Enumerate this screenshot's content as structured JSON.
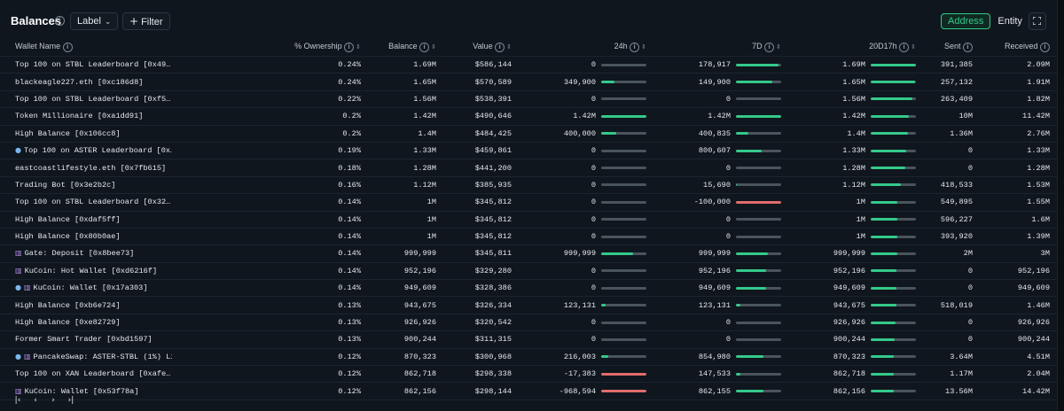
{
  "header": {
    "title": "Balances",
    "label_dropdown": "Label",
    "filter_label": "Filter",
    "toggle": {
      "address": "Address",
      "entity": "Entity",
      "active": "Address"
    }
  },
  "columns": [
    "Wallet Name",
    "% Ownership",
    "Balance",
    "Value",
    "24h",
    "7D",
    "20D17h",
    "Sent",
    "Received"
  ],
  "colors": {
    "accent": "#34c98a",
    "negative": "#e06c6c",
    "bar_track": "#4a545d"
  },
  "rows": [
    {
      "name": "Top 100 on STBL Leaderboard [0x49…",
      "icons": [],
      "ownership": "0.24%",
      "balance": "1.69M",
      "value": "$586,144",
      "h24": "0",
      "h24_bar": 0,
      "d7": "178,917",
      "d7_bar": 0.95,
      "d20": "1.69M",
      "d20_bar": 1.0,
      "sent": "391,385",
      "received": "2.09M"
    },
    {
      "name": "blackeagle227.eth [0xc186d8]",
      "icons": [],
      "ownership": "0.24%",
      "balance": "1.65M",
      "value": "$570,589",
      "h24": "349,900",
      "h24_bar": 0.3,
      "d7": "149,900",
      "d7_bar": 0.8,
      "d20": "1.65M",
      "d20_bar": 0.98,
      "sent": "257,132",
      "received": "1.91M"
    },
    {
      "name": "Top 100 on STBL Leaderboard [0xf5…",
      "icons": [],
      "ownership": "0.22%",
      "balance": "1.56M",
      "value": "$538,391",
      "h24": "0",
      "h24_bar": 0,
      "d7": "0",
      "d7_bar": 0,
      "d20": "1.56M",
      "d20_bar": 0.92,
      "sent": "263,409",
      "received": "1.82M"
    },
    {
      "name": "Token Millionaire [0xa1dd91]",
      "icons": [],
      "ownership": "0.2%",
      "balance": "1.42M",
      "value": "$490,646",
      "h24": "1.42M",
      "h24_bar": 1.0,
      "d7": "1.42M",
      "d7_bar": 1.0,
      "d20": "1.42M",
      "d20_bar": 0.84,
      "sent": "10M",
      "received": "11.42M"
    },
    {
      "name": "High Balance [0x106cc8]",
      "icons": [],
      "ownership": "0.2%",
      "balance": "1.4M",
      "value": "$484,425",
      "h24": "400,000",
      "h24_bar": 0.33,
      "d7": "400,835",
      "d7_bar": 0.28,
      "d20": "1.4M",
      "d20_bar": 0.83,
      "sent": "1.36M",
      "received": "2.76M"
    },
    {
      "name": "Top 100 on ASTER Leaderboard [0x…",
      "icons": [
        "bot"
      ],
      "ownership": "0.19%",
      "balance": "1.33M",
      "value": "$459,861",
      "h24": "0",
      "h24_bar": 0,
      "d7": "800,607",
      "d7_bar": 0.56,
      "d20": "1.33M",
      "d20_bar": 0.79,
      "sent": "0",
      "received": "1.33M"
    },
    {
      "name": "eastcoastlifestyle.eth [0x7fb615]",
      "icons": [],
      "ownership": "0.18%",
      "balance": "1.28M",
      "value": "$441,200",
      "h24": "0",
      "h24_bar": 0,
      "d7": "0",
      "d7_bar": 0,
      "d20": "1.28M",
      "d20_bar": 0.76,
      "sent": "0",
      "received": "1.28M"
    },
    {
      "name": "Trading Bot [0x3e2b2c]",
      "icons": [],
      "ownership": "0.16%",
      "balance": "1.12M",
      "value": "$385,935",
      "h24": "0",
      "h24_bar": 0,
      "d7": "15,690",
      "d7_bar": 0.02,
      "d20": "1.12M",
      "d20_bar": 0.66,
      "sent": "418,533",
      "received": "1.53M"
    },
    {
      "name": "Top 100 on STBL Leaderboard [0x32…",
      "icons": [],
      "ownership": "0.14%",
      "balance": "1M",
      "value": "$345,812",
      "h24": "0",
      "h24_bar": 0,
      "d7": "-100,000",
      "d7_bar": -1.0,
      "d20": "1M",
      "d20_bar": 0.59,
      "sent": "549,895",
      "received": "1.55M"
    },
    {
      "name": "High Balance [0xdaf5ff]",
      "icons": [],
      "ownership": "0.14%",
      "balance": "1M",
      "value": "$345,812",
      "h24": "0",
      "h24_bar": 0,
      "d7": "0",
      "d7_bar": 0,
      "d20": "1M",
      "d20_bar": 0.59,
      "sent": "596,227",
      "received": "1.6M"
    },
    {
      "name": "High Balance [0x80b0ae]",
      "icons": [],
      "ownership": "0.14%",
      "balance": "1M",
      "value": "$345,812",
      "h24": "0",
      "h24_bar": 0,
      "d7": "0",
      "d7_bar": 0,
      "d20": "1M",
      "d20_bar": 0.59,
      "sent": "393,920",
      "received": "1.39M"
    },
    {
      "name": "Gate: Deposit [0x8bee73]",
      "icons": [
        "bank"
      ],
      "ownership": "0.14%",
      "balance": "999,999",
      "value": "$345,811",
      "h24": "999,999",
      "h24_bar": 0.7,
      "d7": "999,999",
      "d7_bar": 0.7,
      "d20": "999,999",
      "d20_bar": 0.59,
      "sent": "2M",
      "received": "3M"
    },
    {
      "name": "KuCoin: Hot Wallet [0xd6216f]",
      "icons": [
        "bank"
      ],
      "ownership": "0.14%",
      "balance": "952,196",
      "value": "$329,280",
      "h24": "0",
      "h24_bar": 0,
      "d7": "952,196",
      "d7_bar": 0.67,
      "d20": "952,196",
      "d20_bar": 0.56,
      "sent": "0",
      "received": "952,196"
    },
    {
      "name": "KuCoin: Wallet [0x17a303]",
      "icons": [
        "bot",
        "bank"
      ],
      "ownership": "0.14%",
      "balance": "949,609",
      "value": "$328,386",
      "h24": "0",
      "h24_bar": 0,
      "d7": "949,609",
      "d7_bar": 0.67,
      "d20": "949,609",
      "d20_bar": 0.56,
      "sent": "0",
      "received": "949,609"
    },
    {
      "name": "High Balance [0xb6e724]",
      "icons": [],
      "ownership": "0.13%",
      "balance": "943,675",
      "value": "$326,334",
      "h24": "123,131",
      "h24_bar": 0.09,
      "d7": "123,131",
      "d7_bar": 0.09,
      "d20": "943,675",
      "d20_bar": 0.56,
      "sent": "518,019",
      "received": "1.46M"
    },
    {
      "name": "High Balance [0xe82729]",
      "icons": [],
      "ownership": "0.13%",
      "balance": "926,926",
      "value": "$320,542",
      "h24": "0",
      "h24_bar": 0,
      "d7": "0",
      "d7_bar": 0,
      "d20": "926,926",
      "d20_bar": 0.55,
      "sent": "0",
      "received": "926,926"
    },
    {
      "name": "Former Smart Trader [0xbd1597]",
      "icons": [],
      "ownership": "0.13%",
      "balance": "900,244",
      "value": "$311,315",
      "h24": "0",
      "h24_bar": 0,
      "d7": "0",
      "d7_bar": 0,
      "d20": "900,244",
      "d20_bar": 0.53,
      "sent": "0",
      "received": "900,244"
    },
    {
      "name": "PancakeSwap: ASTER-STBL (1%) Li…",
      "icons": [
        "bot",
        "bank"
      ],
      "ownership": "0.12%",
      "balance": "870,323",
      "value": "$300,968",
      "h24": "216,003",
      "h24_bar": 0.15,
      "d7": "854,980",
      "d7_bar": 0.6,
      "d20": "870,323",
      "d20_bar": 0.51,
      "sent": "3.64M",
      "received": "4.51M"
    },
    {
      "name": "Top 100 on XAN Leaderboard [0xafe…",
      "icons": [],
      "ownership": "0.12%",
      "balance": "862,718",
      "value": "$298,338",
      "h24": "-17,383",
      "h24_bar": -1.0,
      "d7": "147,533",
      "d7_bar": 0.1,
      "d20": "862,718",
      "d20_bar": 0.51,
      "sent": "1.17M",
      "received": "2.04M"
    },
    {
      "name": "KuCoin: Wallet [0x53f78a]",
      "icons": [
        "bank"
      ],
      "ownership": "0.12%",
      "balance": "862,156",
      "value": "$298,144",
      "h24": "-968,594",
      "h24_bar": -1.0,
      "d7": "862,155",
      "d7_bar": 0.6,
      "d20": "862,156",
      "d20_bar": 0.51,
      "sent": "13.56M",
      "received": "14.42M"
    }
  ],
  "pager": {
    "first": "|‹",
    "prev": "‹",
    "next": "›",
    "last": "›|"
  }
}
